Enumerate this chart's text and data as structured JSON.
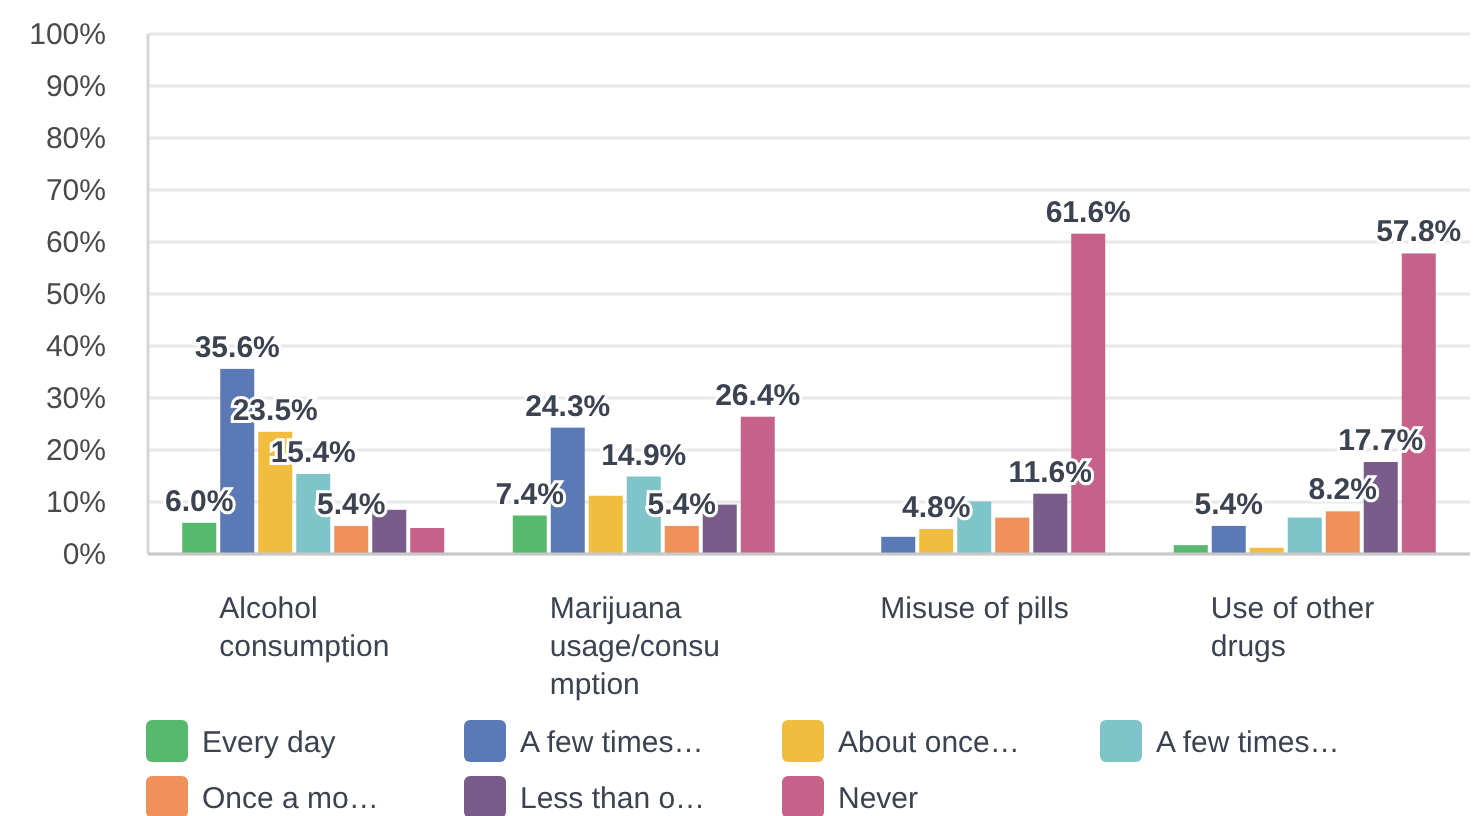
{
  "chart_data": {
    "type": "bar",
    "categories": [
      "Alcohol consumption",
      "Marijuana usage/consumption",
      "Misuse of pills",
      "Use of other drugs"
    ],
    "series": [
      {
        "name": "Every day",
        "color": "#57b96e",
        "values": [
          6.0,
          7.4,
          0,
          1.7
        ],
        "value_labels": [
          "6.0%",
          "7.4%",
          null,
          null
        ]
      },
      {
        "name": "A few times…",
        "color": "#5b79b4",
        "values": [
          35.6,
          24.3,
          3.3,
          5.4
        ],
        "value_labels": [
          "35.6%",
          "24.3%",
          null,
          "5.4%"
        ]
      },
      {
        "name": "About once…",
        "color": "#f0bd3f",
        "values": [
          23.5,
          11.2,
          4.8,
          1.2
        ],
        "value_labels": [
          "23.5%",
          null,
          "4.8%",
          null
        ]
      },
      {
        "name": "A few times…",
        "color": "#7ec4c8",
        "values": [
          15.4,
          14.9,
          10.1,
          7.0
        ],
        "value_labels": [
          "15.4%",
          "14.9%",
          null,
          null
        ]
      },
      {
        "name": "Once a mo…",
        "color": "#f0915a",
        "values": [
          5.4,
          5.4,
          7.0,
          8.2
        ],
        "value_labels": [
          "5.4%",
          "5.4%",
          null,
          "8.2%"
        ]
      },
      {
        "name": "Less than o…",
        "color": "#7a5c8b",
        "values": [
          8.5,
          9.5,
          11.6,
          17.7
        ],
        "value_labels": [
          null,
          null,
          "11.6%",
          "17.7%"
        ]
      },
      {
        "name": "Never",
        "color": "#c6628a",
        "values": [
          5.0,
          26.4,
          61.6,
          57.8
        ],
        "value_labels": [
          null,
          "26.4%",
          "61.6%",
          "57.8%"
        ]
      }
    ],
    "ylim": [
      0,
      100
    ],
    "yticks": [
      {
        "value": 0,
        "label": "0%"
      },
      {
        "value": 10,
        "label": "10%"
      },
      {
        "value": 20,
        "label": "20%"
      },
      {
        "value": 30,
        "label": "30%"
      },
      {
        "value": 40,
        "label": "40%"
      },
      {
        "value": 50,
        "label": "50%"
      },
      {
        "value": 60,
        "label": "60%"
      },
      {
        "value": 70,
        "label": "70%"
      },
      {
        "value": 80,
        "label": "80%"
      },
      {
        "value": 90,
        "label": "90%"
      },
      {
        "value": 100,
        "label": "100%"
      }
    ],
    "grid": "y",
    "legend": "bottom"
  }
}
